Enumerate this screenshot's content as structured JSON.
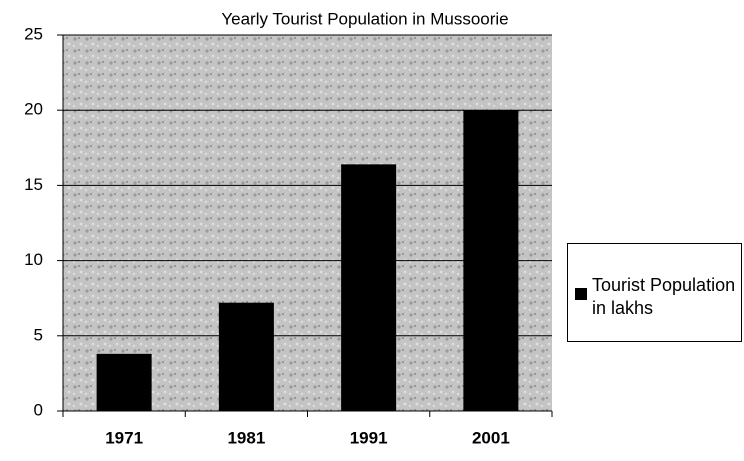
{
  "chart_data": {
    "type": "bar",
    "title": "Yearly Tourist Population in Mussoorie",
    "categories": [
      "1971",
      "1981",
      "1991",
      "2001"
    ],
    "series": [
      {
        "name": "Tourist Population in lakhs",
        "color": "#000000",
        "values": [
          3.8,
          7.2,
          16.4,
          20
        ]
      }
    ],
    "ylim": [
      0,
      25
    ],
    "yticks": [
      0,
      5,
      10,
      15,
      20,
      25
    ],
    "grid": true,
    "legend": "right"
  }
}
